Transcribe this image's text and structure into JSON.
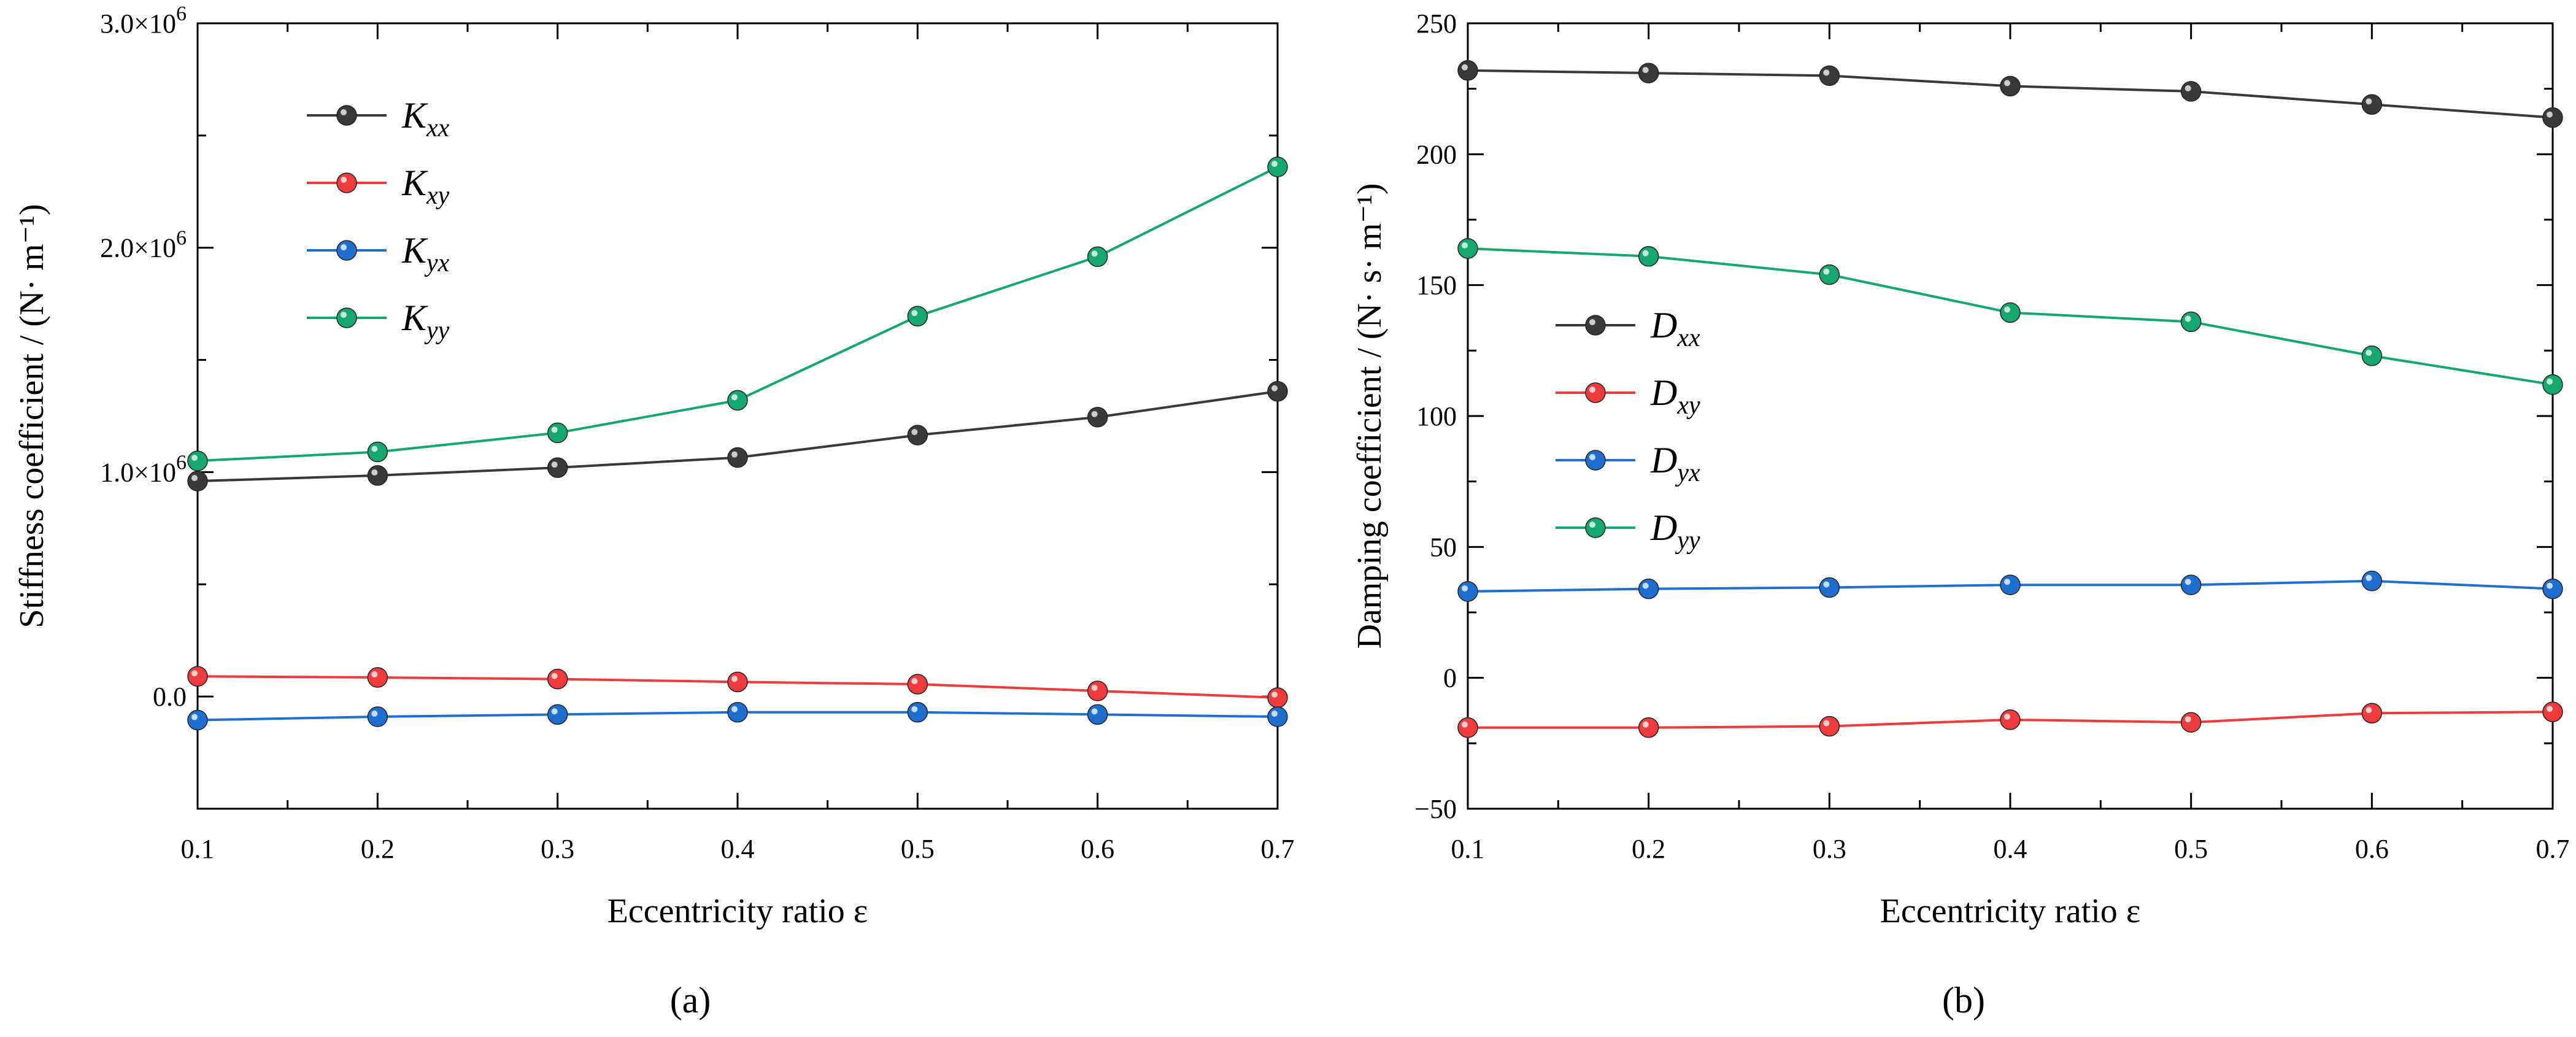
{
  "chart_data": [
    {
      "type": "line",
      "panel_label": "(a)",
      "xlabel": "Eccentricity ratio ε",
      "ylabel": "Stiffness coefficient / (N· m⁻¹)",
      "x": [
        0.1,
        0.2,
        0.3,
        0.4,
        0.5,
        0.6,
        0.7
      ],
      "xlim": [
        0.1,
        0.7
      ],
      "ylim": [
        -500000,
        3000000
      ],
      "x_ticks": [
        "0.1",
        "0.2",
        "0.3",
        "0.4",
        "0.5",
        "0.6",
        "0.7"
      ],
      "y_ticks": [
        {
          "value": 0,
          "label": "0.0",
          "sup": ""
        },
        {
          "value": 1000000,
          "label": "1.0×10",
          "sup": "6"
        },
        {
          "value": 2000000,
          "label": "2.0×10",
          "sup": "6"
        },
        {
          "value": 3000000,
          "label": "3.0×10",
          "sup": "6"
        }
      ],
      "legend_position": "top-left",
      "series": [
        {
          "name": "Kxx",
          "base": "K",
          "subscript": "xx",
          "color": "#3a3a3a",
          "values": [
            960000,
            985000,
            1020000,
            1065000,
            1165000,
            1245000,
            1360000
          ]
        },
        {
          "name": "Kxy",
          "base": "K",
          "subscript": "xy",
          "color": "#ee3b3b",
          "values": [
            90000,
            85000,
            78000,
            65000,
            55000,
            25000,
            -5000
          ]
        },
        {
          "name": "Kyx",
          "base": "K",
          "subscript": "yx",
          "color": "#1f6fd1",
          "values": [
            -105000,
            -90000,
            -80000,
            -70000,
            -70000,
            -80000,
            -90000
          ]
        },
        {
          "name": "Kyy",
          "base": "K",
          "subscript": "yy",
          "color": "#14a86e",
          "values": [
            1050000,
            1090000,
            1175000,
            1320000,
            1695000,
            1960000,
            2360000
          ]
        }
      ]
    },
    {
      "type": "line",
      "panel_label": "(b)",
      "xlabel": "Eccentricity ratio ε",
      "ylabel": "Damping coefficient / (N· s· m⁻¹)",
      "x": [
        0.1,
        0.2,
        0.3,
        0.4,
        0.5,
        0.6,
        0.7
      ],
      "xlim": [
        0.1,
        0.7
      ],
      "ylim": [
        -50,
        250
      ],
      "x_ticks": [
        "0.1",
        "0.2",
        "0.3",
        "0.4",
        "0.5",
        "0.6",
        "0.7"
      ],
      "y_ticks": [
        {
          "value": -50,
          "label": "−50",
          "sup": ""
        },
        {
          "value": 0,
          "label": "0",
          "sup": ""
        },
        {
          "value": 50,
          "label": "50",
          "sup": ""
        },
        {
          "value": 100,
          "label": "100",
          "sup": ""
        },
        {
          "value": 150,
          "label": "150",
          "sup": ""
        },
        {
          "value": 200,
          "label": "200",
          "sup": ""
        },
        {
          "value": 250,
          "label": "250",
          "sup": ""
        }
      ],
      "legend_position": "middle-left",
      "series": [
        {
          "name": "Dxx",
          "base": "D",
          "subscript": "xx",
          "color": "#3a3a3a",
          "values": [
            232,
            231,
            230,
            226,
            224,
            219,
            214
          ]
        },
        {
          "name": "Dxy",
          "base": "D",
          "subscript": "xy",
          "color": "#ee3b3b",
          "values": [
            -19,
            -19,
            -18.5,
            -16,
            -17,
            -13.5,
            -13
          ]
        },
        {
          "name": "Dyx",
          "base": "D",
          "subscript": "yx",
          "color": "#1f6fd1",
          "values": [
            33,
            34,
            34.5,
            35.5,
            35.5,
            37,
            34
          ]
        },
        {
          "name": "Dyy",
          "base": "D",
          "subscript": "yy",
          "color": "#14a86e",
          "values": [
            164,
            161,
            154,
            139.5,
            136,
            123,
            112
          ]
        }
      ]
    }
  ]
}
